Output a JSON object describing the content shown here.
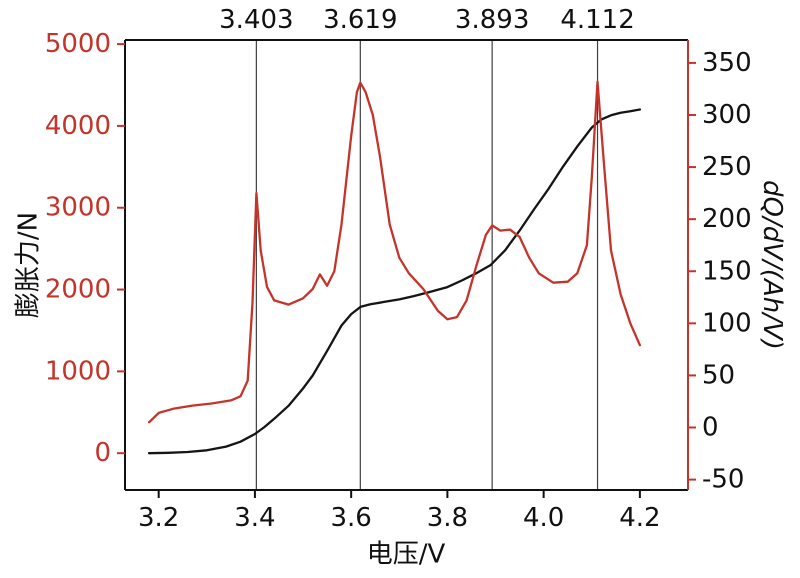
{
  "figure": {
    "xlabel": "电压/V",
    "ylabel_left": "膨胀力/N",
    "ylabel_right": "dQ/dV/(Ah/V)"
  },
  "chart_data": {
    "type": "line",
    "title": "",
    "xlabel": "电压/V",
    "ylabel_left": "膨胀力/N",
    "ylabel_right": "dQ/dV/(Ah/V)",
    "grid": false,
    "legend": "none",
    "x_range": [
      3.13,
      4.3
    ],
    "x_ticks": [
      3.2,
      3.4,
      3.6,
      3.8,
      4.0,
      4.2
    ],
    "x_tick_labels": [
      "3.2",
      "3.4",
      "3.6",
      "3.8",
      "4.0",
      "4.2"
    ],
    "left_axis": {
      "range": [
        -450,
        5050
      ],
      "ticks": [
        0,
        1000,
        2000,
        3000,
        4000,
        5000
      ],
      "tick_labels": [
        "0",
        "1000",
        "2000",
        "3000",
        "4000",
        "5000"
      ],
      "tick_color": "#c5342b",
      "spine_color": "#111111"
    },
    "right_axis": {
      "range": [
        -60,
        372
      ],
      "ticks": [
        -50,
        0,
        50,
        100,
        150,
        200,
        250,
        300,
        350
      ],
      "tick_labels": [
        "-50",
        "0",
        "50",
        "100",
        "150",
        "200",
        "250",
        "300",
        "350"
      ],
      "tick_color": "#c5342b",
      "label_color": "#111111",
      "spine_color": "#c5342b"
    },
    "annotations": [
      {
        "x": 3.403,
        "label": "3.403"
      },
      {
        "x": 3.619,
        "label": "3.619"
      },
      {
        "x": 3.893,
        "label": "3.893"
      },
      {
        "x": 4.112,
        "label": "4.112"
      }
    ],
    "annotation_line_color": "#3f3f3f",
    "series": [
      {
        "name": "expansion-force",
        "axis": "left",
        "color": "#151515",
        "points": [
          [
            3.18,
            0
          ],
          [
            3.22,
            5
          ],
          [
            3.26,
            15
          ],
          [
            3.3,
            35
          ],
          [
            3.34,
            80
          ],
          [
            3.37,
            140
          ],
          [
            3.4,
            235
          ],
          [
            3.42,
            320
          ],
          [
            3.44,
            420
          ],
          [
            3.47,
            580
          ],
          [
            3.5,
            790
          ],
          [
            3.52,
            950
          ],
          [
            3.55,
            1250
          ],
          [
            3.58,
            1560
          ],
          [
            3.6,
            1700
          ],
          [
            3.62,
            1790
          ],
          [
            3.64,
            1820
          ],
          [
            3.67,
            1850
          ],
          [
            3.7,
            1880
          ],
          [
            3.73,
            1920
          ],
          [
            3.76,
            1965
          ],
          [
            3.8,
            2030
          ],
          [
            3.83,
            2110
          ],
          [
            3.86,
            2200
          ],
          [
            3.89,
            2300
          ],
          [
            3.92,
            2480
          ],
          [
            3.95,
            2720
          ],
          [
            3.98,
            2980
          ],
          [
            4.01,
            3230
          ],
          [
            4.04,
            3500
          ],
          [
            4.07,
            3750
          ],
          [
            4.1,
            3980
          ],
          [
            4.12,
            4080
          ],
          [
            4.14,
            4130
          ],
          [
            4.16,
            4160
          ],
          [
            4.18,
            4180
          ],
          [
            4.2,
            4200
          ]
        ]
      },
      {
        "name": "dQdV",
        "axis": "right",
        "color": "#c5342b",
        "points": [
          [
            3.18,
            5
          ],
          [
            3.2,
            14
          ],
          [
            3.23,
            18
          ],
          [
            3.27,
            21
          ],
          [
            3.31,
            23
          ],
          [
            3.35,
            26
          ],
          [
            3.37,
            30
          ],
          [
            3.385,
            45
          ],
          [
            3.395,
            120
          ],
          [
            3.403,
            225
          ],
          [
            3.412,
            170
          ],
          [
            3.425,
            135
          ],
          [
            3.44,
            122
          ],
          [
            3.47,
            118
          ],
          [
            3.5,
            124
          ],
          [
            3.52,
            133
          ],
          [
            3.535,
            147
          ],
          [
            3.55,
            136
          ],
          [
            3.565,
            150
          ],
          [
            3.58,
            195
          ],
          [
            3.6,
            280
          ],
          [
            3.612,
            322
          ],
          [
            3.619,
            331
          ],
          [
            3.63,
            322
          ],
          [
            3.645,
            300
          ],
          [
            3.66,
            260
          ],
          [
            3.68,
            195
          ],
          [
            3.7,
            163
          ],
          [
            3.72,
            148
          ],
          [
            3.75,
            133
          ],
          [
            3.78,
            112
          ],
          [
            3.8,
            104
          ],
          [
            3.82,
            106
          ],
          [
            3.84,
            122
          ],
          [
            3.86,
            155
          ],
          [
            3.88,
            185
          ],
          [
            3.893,
            194
          ],
          [
            3.91,
            189
          ],
          [
            3.93,
            190
          ],
          [
            3.95,
            183
          ],
          [
            3.97,
            163
          ],
          [
            3.99,
            148
          ],
          [
            4.02,
            139
          ],
          [
            4.05,
            140
          ],
          [
            4.07,
            148
          ],
          [
            4.09,
            175
          ],
          [
            4.1,
            240
          ],
          [
            4.112,
            332
          ],
          [
            4.125,
            255
          ],
          [
            4.14,
            170
          ],
          [
            4.16,
            128
          ],
          [
            4.18,
            100
          ],
          [
            4.2,
            79
          ]
        ]
      }
    ]
  }
}
